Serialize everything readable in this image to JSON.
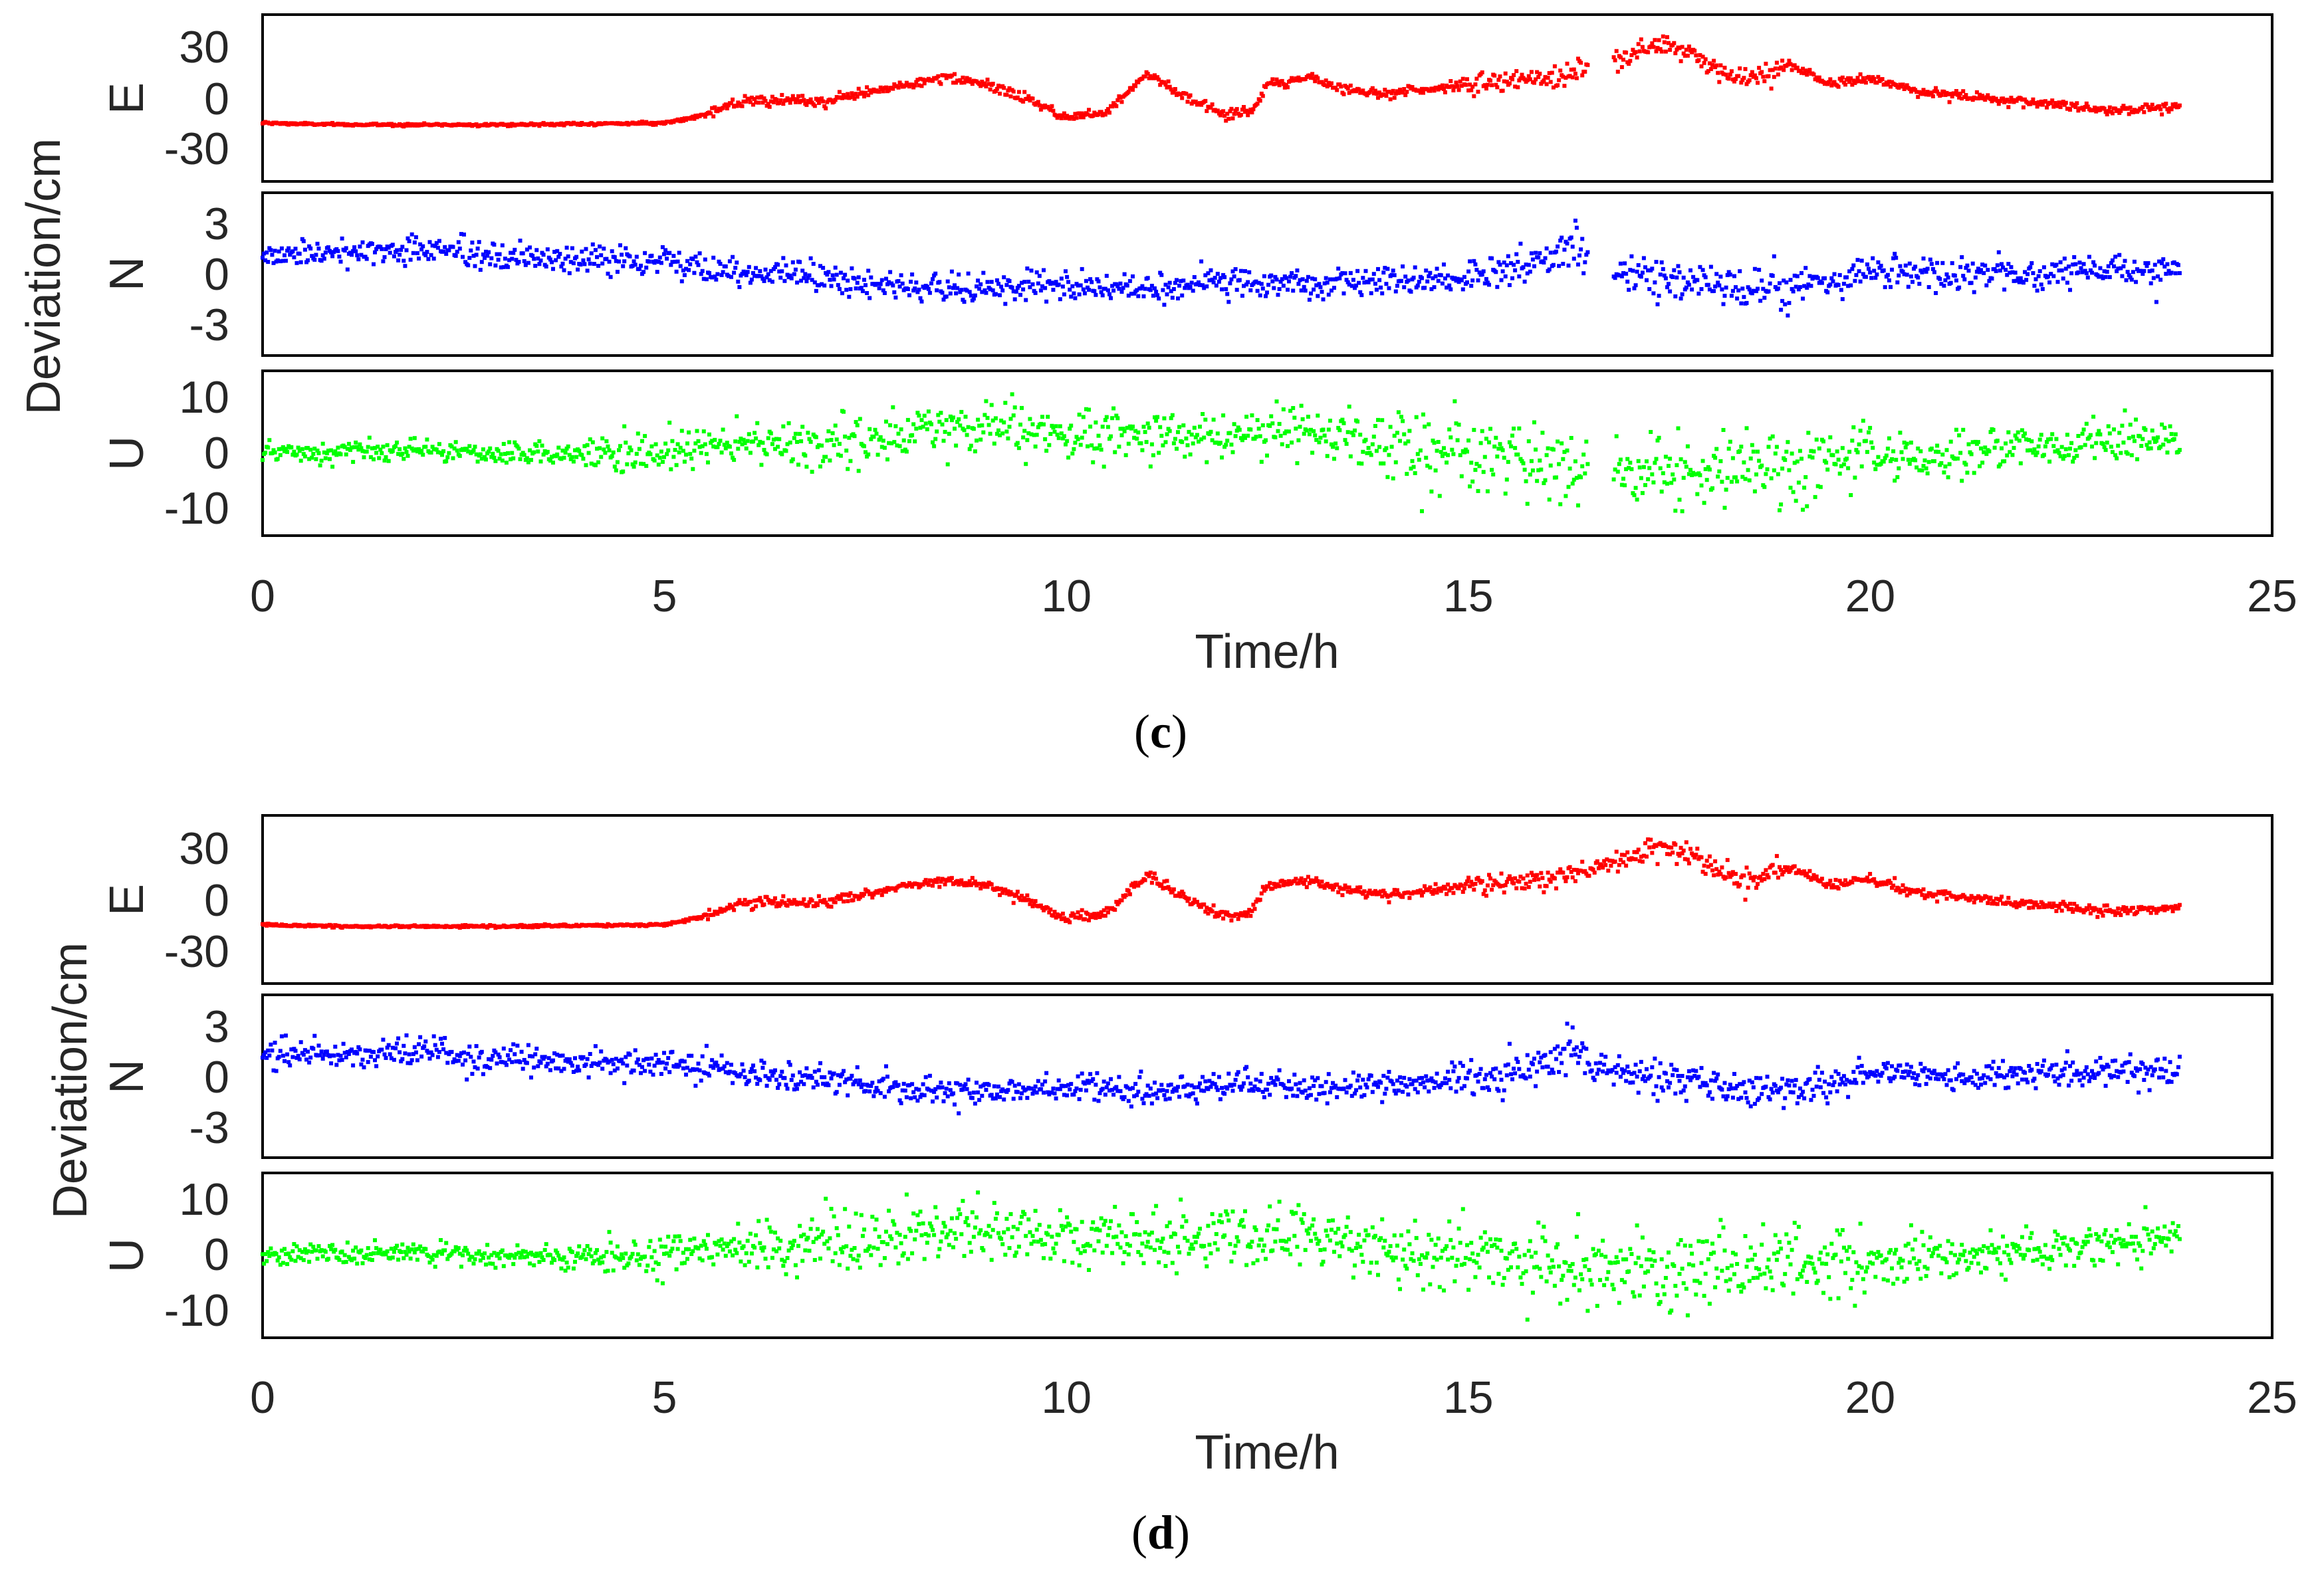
{
  "figure": {
    "ylabel_shared": "Deviation/cm",
    "xlabel": "Time/h",
    "x_ticks": [
      "0",
      "5",
      "10",
      "15",
      "20",
      "25"
    ]
  },
  "panels": [
    {
      "id": "c",
      "caption_open": "(",
      "caption_letter": "c",
      "caption_close": ")"
    },
    {
      "id": "d",
      "caption_open": "(",
      "caption_letter": "d",
      "caption_close": ")"
    }
  ],
  "components": [
    {
      "name": "E",
      "color": "#ff0000",
      "ylim": [
        -50,
        50
      ],
      "yticks": [
        "30",
        "0",
        "-30"
      ],
      "ytick_values": [
        30,
        0,
        -30
      ]
    },
    {
      "name": "N",
      "color": "#0000ff",
      "ylim": [
        -5,
        5
      ],
      "yticks": [
        "3",
        "0",
        "-3"
      ],
      "ytick_values": [
        3,
        0,
        -3
      ]
    },
    {
      "name": "U",
      "color": "#00ff00",
      "ylim": [
        -15,
        15
      ],
      "yticks": [
        "10",
        "0",
        "-10"
      ],
      "ytick_values": [
        10,
        0,
        -10
      ]
    }
  ],
  "chart_data": [
    {
      "type": "scatter",
      "panel": "c",
      "title": "",
      "xlabel": "Time/h",
      "ylabel": "Deviation/cm",
      "xlim": [
        0,
        25
      ],
      "x_ticks": [
        0,
        5,
        10,
        15,
        20,
        25
      ],
      "gap_hours": [
        16.5,
        16.8
      ],
      "series": [
        {
          "name": "E",
          "color": "#ff0000",
          "ylim": [
            -50,
            50
          ],
          "noise": 1.5,
          "trend": [
            [
              0,
              -15
            ],
            [
              1,
              -16
            ],
            [
              3,
              -16
            ],
            [
              5,
              -15
            ],
            [
              5.5,
              -10
            ],
            [
              6,
              -2
            ],
            [
              7,
              -2
            ],
            [
              7.5,
              3
            ],
            [
              8,
              8
            ],
            [
              8.5,
              12
            ],
            [
              9,
              8
            ],
            [
              9.5,
              0
            ],
            [
              10,
              -12
            ],
            [
              10.5,
              -8
            ],
            [
              11,
              15
            ],
            [
              11.5,
              0
            ],
            [
              12,
              -10
            ],
            [
              12.3,
              -8
            ],
            [
              12.5,
              8
            ],
            [
              13,
              12
            ],
            [
              13.5,
              5
            ],
            [
              14,
              3
            ],
            [
              15,
              8
            ],
            [
              16,
              12
            ],
            [
              16.5,
              18
            ],
            [
              17,
              25
            ],
            [
              17.5,
              33
            ],
            [
              18,
              20
            ],
            [
              18.5,
              10
            ],
            [
              19,
              20
            ],
            [
              19.5,
              8
            ],
            [
              20,
              12
            ],
            [
              20.5,
              5
            ],
            [
              21,
              2
            ],
            [
              22,
              -3
            ],
            [
              23,
              -7
            ],
            [
              23.8,
              -5
            ]
          ]
        },
        {
          "name": "N",
          "color": "#0000ff",
          "ylim": [
            -5,
            5
          ],
          "noise": 0.45,
          "trend": [
            [
              0,
              1.2
            ],
            [
              2,
              1.5
            ],
            [
              3,
              1.0
            ],
            [
              5,
              0.8
            ],
            [
              6,
              0.2
            ],
            [
              7,
              -0.2
            ],
            [
              8,
              -0.8
            ],
            [
              9,
              -0.9
            ],
            [
              10,
              -0.6
            ],
            [
              11,
              -1.0
            ],
            [
              12,
              -0.5
            ],
            [
              13,
              -0.7
            ],
            [
              14,
              -0.5
            ],
            [
              15,
              -0.2
            ],
            [
              15.5,
              0.2
            ],
            [
              16,
              0.8
            ],
            [
              16.3,
              2.0
            ],
            [
              16.5,
              0.5
            ],
            [
              17,
              0.3
            ],
            [
              17.5,
              -0.2
            ],
            [
              18,
              -0.3
            ],
            [
              18.3,
              -0.8
            ],
            [
              19,
              -1.0
            ],
            [
              19.5,
              -0.4
            ],
            [
              20,
              0.2
            ],
            [
              21,
              0.0
            ],
            [
              22,
              0.0
            ],
            [
              23,
              0.2
            ],
            [
              23.8,
              0.3
            ]
          ]
        },
        {
          "name": "U",
          "color": "#00ff00",
          "ylim": [
            -15,
            15
          ],
          "noise": 2.6,
          "trend": [
            [
              0,
              0
            ],
            [
              2,
              0.3
            ],
            [
              3,
              0
            ],
            [
              4,
              -0.5
            ],
            [
              5,
              0
            ],
            [
              6,
              1.5
            ],
            [
              7,
              2
            ],
            [
              8,
              3
            ],
            [
              9,
              5
            ],
            [
              10,
              3
            ],
            [
              11,
              3
            ],
            [
              12,
              3.5
            ],
            [
              13,
              4
            ],
            [
              14,
              1.5
            ],
            [
              15,
              0
            ],
            [
              16,
              -2
            ],
            [
              17,
              -3
            ],
            [
              18,
              -3
            ],
            [
              19,
              -1.5
            ],
            [
              20,
              -1
            ],
            [
              21,
              0
            ],
            [
              22,
              1
            ],
            [
              23,
              2
            ],
            [
              23.8,
              2.5
            ]
          ]
        }
      ]
    },
    {
      "type": "scatter",
      "panel": "d",
      "title": "",
      "xlabel": "Time/h",
      "ylabel": "Deviation/cm",
      "xlim": [
        0,
        25
      ],
      "x_ticks": [
        0,
        5,
        10,
        15,
        20,
        25
      ],
      "gap_hours": [],
      "series": [
        {
          "name": "E",
          "color": "#ff0000",
          "ylim": [
            -50,
            50
          ],
          "noise": 1.5,
          "trend": [
            [
              0,
              -15
            ],
            [
              1,
              -16
            ],
            [
              3,
              -16
            ],
            [
              5,
              -15
            ],
            [
              5.5,
              -10
            ],
            [
              6,
              -2
            ],
            [
              7,
              -2
            ],
            [
              7.5,
              3
            ],
            [
              8,
              8
            ],
            [
              8.5,
              12
            ],
            [
              9,
              8
            ],
            [
              9.5,
              0
            ],
            [
              10,
              -12
            ],
            [
              10.5,
              -8
            ],
            [
              11,
              15
            ],
            [
              11.5,
              0
            ],
            [
              12,
              -10
            ],
            [
              12.3,
              -8
            ],
            [
              12.5,
              8
            ],
            [
              13,
              12
            ],
            [
              13.5,
              5
            ],
            [
              14,
              3
            ],
            [
              15,
              8
            ],
            [
              16,
              12
            ],
            [
              16.5,
              18
            ],
            [
              17,
              25
            ],
            [
              17.5,
              33
            ],
            [
              18,
              20
            ],
            [
              18.5,
              10
            ],
            [
              19,
              20
            ],
            [
              19.5,
              8
            ],
            [
              20,
              12
            ],
            [
              20.5,
              5
            ],
            [
              21,
              2
            ],
            [
              22,
              -3
            ],
            [
              23,
              -7
            ],
            [
              23.8,
              -5
            ]
          ]
        },
        {
          "name": "N",
          "color": "#0000ff",
          "ylim": [
            -5,
            5
          ],
          "noise": 0.45,
          "trend": [
            [
              0,
              1.2
            ],
            [
              2,
              1.5
            ],
            [
              3,
              1.0
            ],
            [
              5,
              0.8
            ],
            [
              6,
              0.2
            ],
            [
              7,
              -0.2
            ],
            [
              8,
              -0.8
            ],
            [
              9,
              -0.9
            ],
            [
              10,
              -0.6
            ],
            [
              11,
              -1.0
            ],
            [
              12,
              -0.5
            ],
            [
              13,
              -0.7
            ],
            [
              14,
              -0.5
            ],
            [
              15,
              -0.2
            ],
            [
              15.5,
              0.2
            ],
            [
              16,
              0.8
            ],
            [
              16.3,
              2.0
            ],
            [
              16.5,
              0.5
            ],
            [
              17,
              0.3
            ],
            [
              17.5,
              -0.2
            ],
            [
              18,
              -0.3
            ],
            [
              18.3,
              -0.8
            ],
            [
              19,
              -1.0
            ],
            [
              19.5,
              -0.4
            ],
            [
              20,
              0.2
            ],
            [
              21,
              0.0
            ],
            [
              22,
              0.0
            ],
            [
              23,
              0.2
            ],
            [
              23.8,
              0.3
            ]
          ]
        },
        {
          "name": "U",
          "color": "#00ff00",
          "ylim": [
            -15,
            15
          ],
          "noise": 2.6,
          "trend": [
            [
              0,
              0
            ],
            [
              2,
              0.3
            ],
            [
              3,
              0
            ],
            [
              4,
              -0.5
            ],
            [
              5,
              0
            ],
            [
              6,
              1.5
            ],
            [
              7,
              2
            ],
            [
              8,
              3
            ],
            [
              9,
              5
            ],
            [
              10,
              3
            ],
            [
              11,
              3
            ],
            [
              12,
              3.5
            ],
            [
              13,
              4
            ],
            [
              14,
              1.5
            ],
            [
              15,
              0
            ],
            [
              16,
              -2
            ],
            [
              17,
              -3
            ],
            [
              18,
              -3
            ],
            [
              19,
              -1.5
            ],
            [
              20,
              -1
            ],
            [
              21,
              0
            ],
            [
              22,
              1
            ],
            [
              23,
              2
            ],
            [
              23.8,
              2.5
            ]
          ]
        }
      ]
    }
  ]
}
